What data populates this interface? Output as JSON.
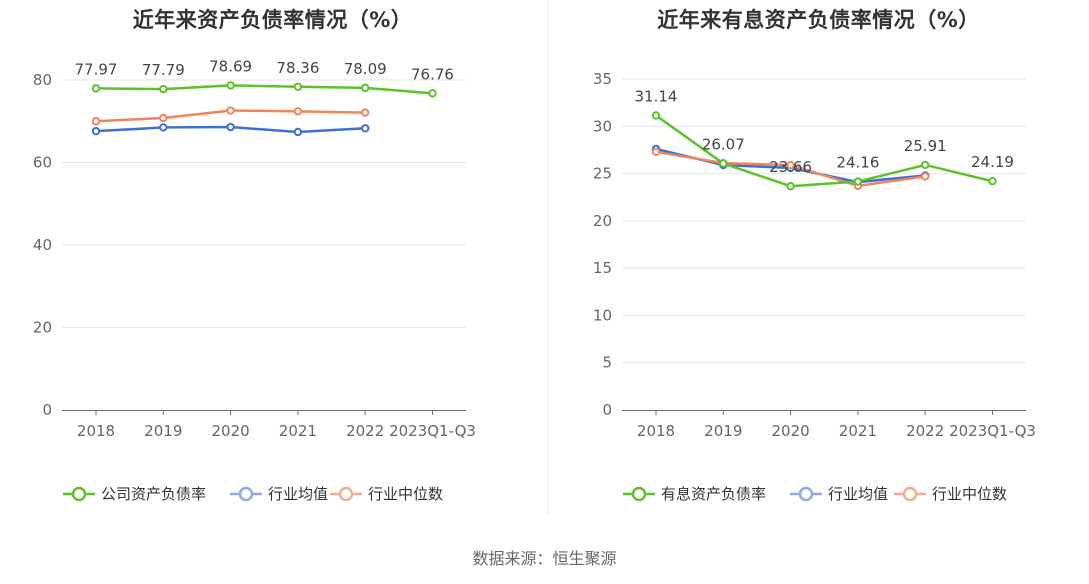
{
  "source_text": "数据来源：恒生聚源",
  "chart_data": [
    {
      "type": "line",
      "title": "近年来资产负债率情况（%）",
      "categories": [
        "2018",
        "2019",
        "2020",
        "2021",
        "2022",
        "2023Q1-Q3"
      ],
      "ylim": [
        0,
        80
      ],
      "yticks": [
        0,
        20,
        40,
        60,
        80
      ],
      "grid": true,
      "legend_position": "bottom",
      "label_series": 0,
      "series": [
        {
          "name": "公司资产负债率",
          "color": "#5cc22b",
          "values": [
            77.97,
            77.79,
            78.69,
            78.36,
            78.09,
            76.76
          ],
          "labels": [
            "77.97",
            "77.79",
            "78.69",
            "78.36",
            "78.09",
            "76.76"
          ]
        },
        {
          "name": "行业均值",
          "color": "#3b6fd6",
          "legend_color": "#8fa8e8",
          "values": [
            67.6,
            68.5,
            68.6,
            67.4,
            68.3,
            null
          ]
        },
        {
          "name": "行业中位数",
          "color": "#f0845c",
          "legend_color": "#f4ab94",
          "values": [
            70.0,
            70.8,
            72.6,
            72.4,
            72.1,
            null
          ]
        }
      ]
    },
    {
      "type": "line",
      "title": "近年来有息资产负债率情况（%）",
      "categories": [
        "2018",
        "2019",
        "2020",
        "2021",
        "2022",
        "2023Q1-Q3"
      ],
      "ylim": [
        0,
        35
      ],
      "yticks": [
        0,
        5,
        10,
        15,
        20,
        25,
        30,
        35
      ],
      "grid": true,
      "legend_position": "bottom",
      "label_series": 0,
      "series": [
        {
          "name": "有息资产负债率",
          "color": "#5cc22b",
          "values": [
            31.14,
            26.07,
            23.66,
            24.16,
            25.91,
            24.19
          ],
          "labels": [
            "31.14",
            "26.07",
            "23.66",
            "24.16",
            "25.91",
            "24.19"
          ]
        },
        {
          "name": "行业均值",
          "color": "#3b6fd6",
          "legend_color": "#8fa8e8",
          "values": [
            27.6,
            25.9,
            25.6,
            24.1,
            24.8,
            null
          ]
        },
        {
          "name": "行业中位数",
          "color": "#f0845c",
          "legend_color": "#f4ab94",
          "values": [
            27.3,
            26.1,
            25.9,
            23.7,
            24.7,
            null
          ]
        }
      ]
    }
  ]
}
